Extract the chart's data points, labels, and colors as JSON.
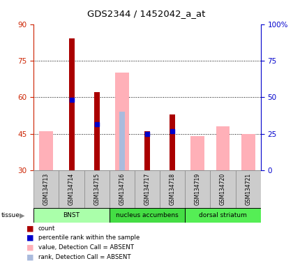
{
  "title": "GDS2344 / 1452042_a_at",
  "samples": [
    "GSM134713",
    "GSM134714",
    "GSM134715",
    "GSM134716",
    "GSM134717",
    "GSM134718",
    "GSM134719",
    "GSM134720",
    "GSM134721"
  ],
  "ylim_left": [
    30,
    90
  ],
  "ylim_right": [
    0,
    100
  ],
  "yticks_left": [
    30,
    45,
    60,
    75,
    90
  ],
  "yticks_right": [
    0,
    25,
    50,
    75,
    100
  ],
  "ytick_labels_right": [
    "0",
    "25",
    "50",
    "75",
    "100%"
  ],
  "count_values": [
    null,
    84,
    62,
    null,
    46,
    53,
    null,
    null,
    null
  ],
  "percentile_values": [
    null,
    59,
    49,
    null,
    45,
    46,
    null,
    null,
    null
  ],
  "absent_value_values": [
    46,
    null,
    null,
    70,
    null,
    null,
    44,
    48,
    45
  ],
  "absent_rank_values": [
    null,
    null,
    50,
    54,
    null,
    null,
    null,
    null,
    null
  ],
  "tissue_groups": [
    {
      "label": "BNST",
      "start": 0,
      "end": 3,
      "color": "#AAFFAA"
    },
    {
      "label": "nucleus accumbens",
      "start": 3,
      "end": 6,
      "color": "#44DD44"
    },
    {
      "label": "dorsal striatum",
      "start": 6,
      "end": 9,
      "color": "#55EE55"
    }
  ],
  "color_count": "#AA0000",
  "color_percentile": "#0000CC",
  "color_absent_value": "#FFB0B8",
  "color_absent_rank": "#AABBDD",
  "grid_color": "black",
  "left_tick_color": "#CC2200",
  "right_tick_color": "#0000CC",
  "baseline": 30
}
